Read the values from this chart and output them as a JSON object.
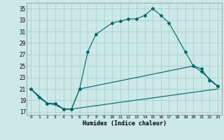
{
  "xlabel": "Humidex (Indice chaleur)",
  "bg_color": "#cce8e8",
  "grid_color": "#aacfcf",
  "line_color": "#006666",
  "xlim": [
    -0.5,
    23.5
  ],
  "ylim": [
    16.5,
    36
  ],
  "xticks": [
    0,
    1,
    2,
    3,
    4,
    5,
    6,
    7,
    8,
    9,
    10,
    11,
    12,
    13,
    14,
    15,
    16,
    17,
    18,
    19,
    20,
    21,
    22,
    23
  ],
  "yticks": [
    17,
    19,
    21,
    23,
    25,
    27,
    29,
    31,
    33,
    35
  ],
  "curve1_x": [
    0,
    1,
    2,
    3,
    4,
    5,
    6,
    7,
    8,
    10,
    11,
    12,
    13,
    14,
    15,
    16,
    17,
    19,
    20,
    21,
    23
  ],
  "curve1_y": [
    21,
    19.5,
    18.5,
    18.5,
    17.5,
    17.5,
    21,
    27.5,
    30.5,
    32.5,
    32.8,
    33.2,
    33.2,
    33.8,
    35,
    33.8,
    32.5,
    27.5,
    25,
    24,
    21.5
  ],
  "curve2_x": [
    0,
    2,
    3,
    4,
    5,
    6,
    20,
    21,
    22,
    23
  ],
  "curve2_y": [
    21,
    18.5,
    18.5,
    17.5,
    17.5,
    21,
    25,
    24.5,
    22.5,
    21.5
  ],
  "curve3_x": [
    0,
    2,
    3,
    4,
    5,
    23
  ],
  "curve3_y": [
    21,
    18.5,
    18.2,
    17.5,
    17.5,
    21
  ]
}
